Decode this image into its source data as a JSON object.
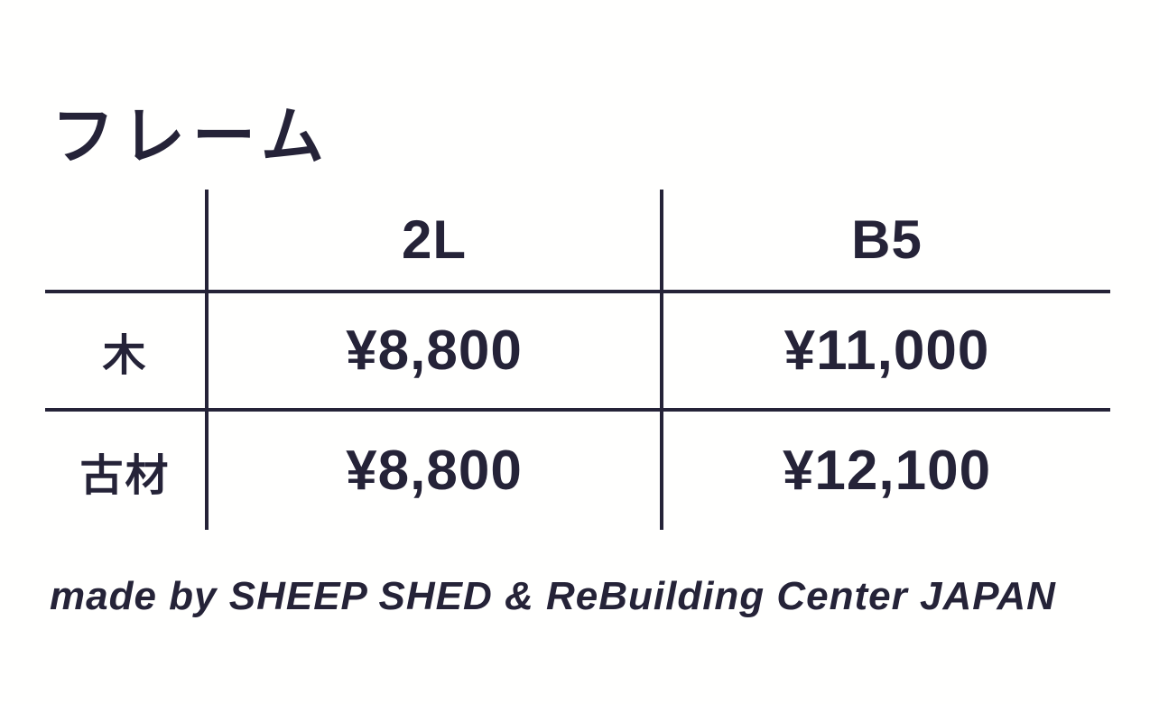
{
  "page": {
    "title": "フレーム",
    "footer_credit": "made by SHEEP SHED & ReBuilding Center JAPAN"
  },
  "colors": {
    "ink": "#252338",
    "background": "#fffffe"
  },
  "price_table": {
    "column_headers": [
      "2L",
      "B5"
    ],
    "rows": [
      {
        "label": "木",
        "prices": [
          "¥8,800",
          "¥11,000"
        ]
      },
      {
        "label": "古材",
        "prices": [
          "¥8,800",
          "¥12,100"
        ]
      }
    ]
  }
}
